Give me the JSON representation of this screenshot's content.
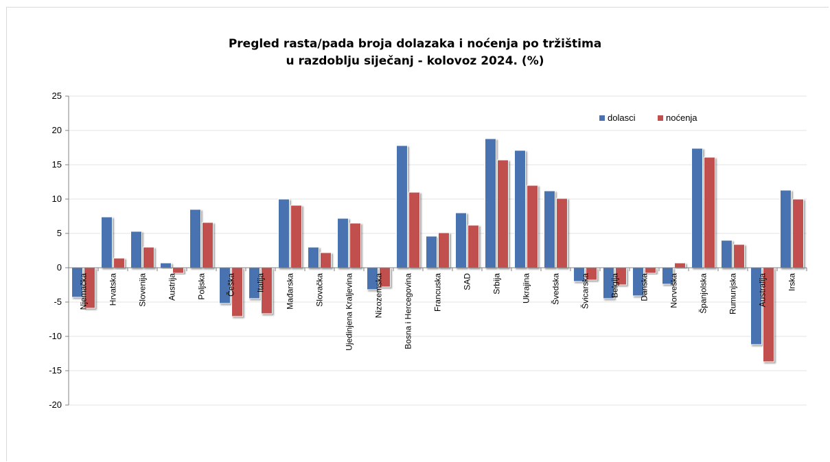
{
  "chart_data": {
    "type": "bar",
    "title_line1": "Pregled rasta/pada broja dolazaka i noćenja po tržištima",
    "title_line2": "u razdoblju siječanj - kolovoz 2024. (%)",
    "xlabel": "",
    "ylabel": "",
    "ylim": [
      -20,
      25
    ],
    "yticks": [
      25,
      20,
      15,
      10,
      5,
      0,
      -5,
      -10,
      -15,
      -20
    ],
    "grid": true,
    "legend_position": "top-right",
    "categories": [
      "Njemačka",
      "Hrvatska",
      "Slovenija",
      "Austrija",
      "Poljska",
      "Češka",
      "Italija",
      "Mađarska",
      "Slovačka",
      "Ujedinjena Kraljevina",
      "Nizozemska",
      "Bosna i Hercegovina",
      "Francuska",
      "SAD",
      "Srbija",
      "Ukrajina",
      "Švedska",
      "Švicarska",
      "Belgija",
      "Danska",
      "Norveška",
      "Španjolska",
      "Rumunjska",
      "Australija",
      "Irska"
    ],
    "series": [
      {
        "name": "dolasci",
        "color": "#4a72b0",
        "values": [
          -4.3,
          7.4,
          5.3,
          0.7,
          8.5,
          -5.2,
          -4.5,
          10.0,
          3.0,
          7.2,
          -3.2,
          17.8,
          4.6,
          8.0,
          18.8,
          17.1,
          11.2,
          -2.0,
          -4.5,
          -4.1,
          -2.4,
          17.4,
          4.0,
          -11.2,
          11.3
        ]
      },
      {
        "name": "noćenja",
        "color": "#c0504d",
        "values": [
          -5.9,
          1.4,
          3.0,
          -0.8,
          6.6,
          -7.1,
          -6.7,
          9.1,
          2.2,
          6.5,
          -2.8,
          11.0,
          5.1,
          6.2,
          15.7,
          12.0,
          10.1,
          -1.8,
          -2.5,
          -0.8,
          0.7,
          16.1,
          3.4,
          -13.7,
          10.0
        ]
      }
    ]
  }
}
